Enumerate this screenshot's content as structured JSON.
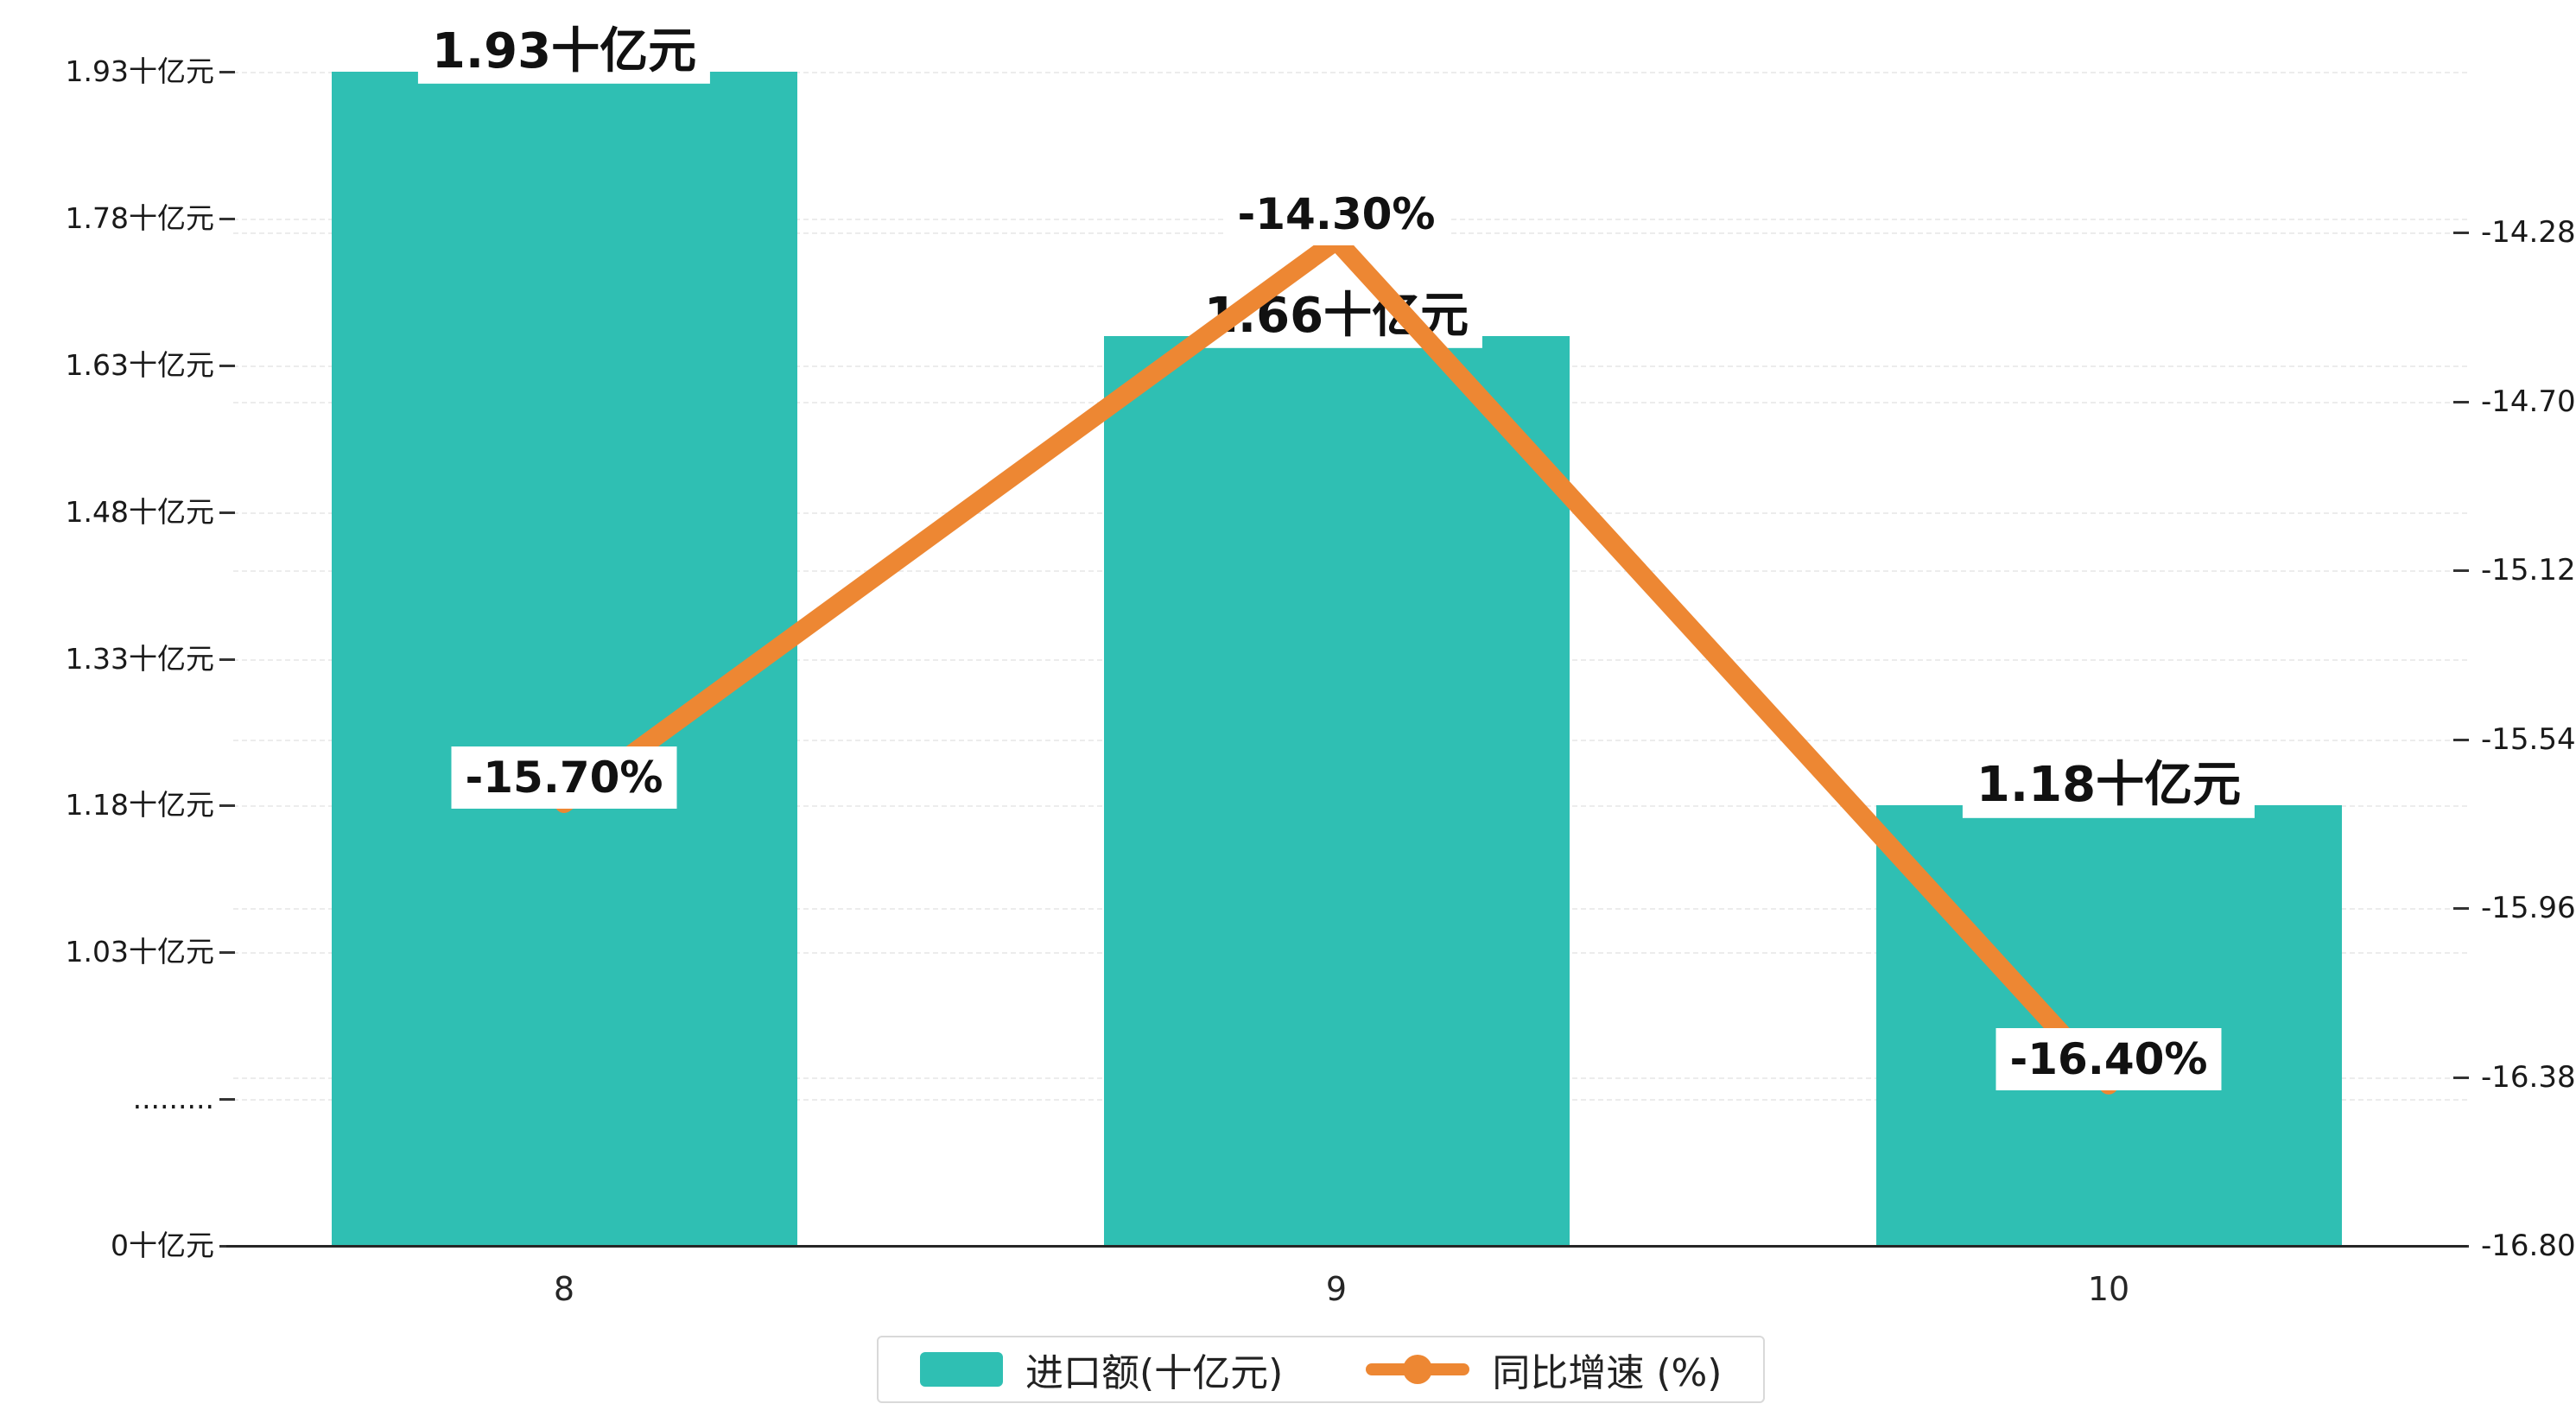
{
  "chart_data": {
    "type": "bar+line",
    "title": "",
    "categories": [
      "8",
      "9",
      "10"
    ],
    "series": [
      {
        "name": "进口额(十亿元)",
        "type": "bar",
        "color": "#2FBFB3",
        "values": [
          1.93,
          1.66,
          1.18
        ],
        "data_labels": [
          "1.93十亿元",
          "1.66十亿元",
          "1.18十亿元"
        ]
      },
      {
        "name": "同比增速 (%)",
        "type": "line",
        "color": "#ED8733",
        "values": [
          -15.7,
          -14.3,
          -16.4
        ],
        "data_labels": [
          "-15.70%",
          "-14.30%",
          "-16.40%"
        ]
      }
    ],
    "left_axis": {
      "tick_labels": [
        "1.93十亿元",
        "1.78十亿元",
        "1.63十亿元",
        "1.48十亿元",
        "1.33十亿元",
        "1.18十亿元",
        "1.03十亿元",
        ".........",
        "0十亿元"
      ],
      "top_value": 1.93,
      "step": 0.15,
      "has_axis_break": true,
      "break_label": "........."
    },
    "right_axis": {
      "tick_labels": [
        "-14.28",
        "-14.70",
        "-15.12",
        "-15.54",
        "-15.96",
        "-16.38",
        "-16.80"
      ],
      "max": -14.28,
      "min": -16.8
    },
    "grid": "dashed",
    "legend_position": "bottom"
  }
}
